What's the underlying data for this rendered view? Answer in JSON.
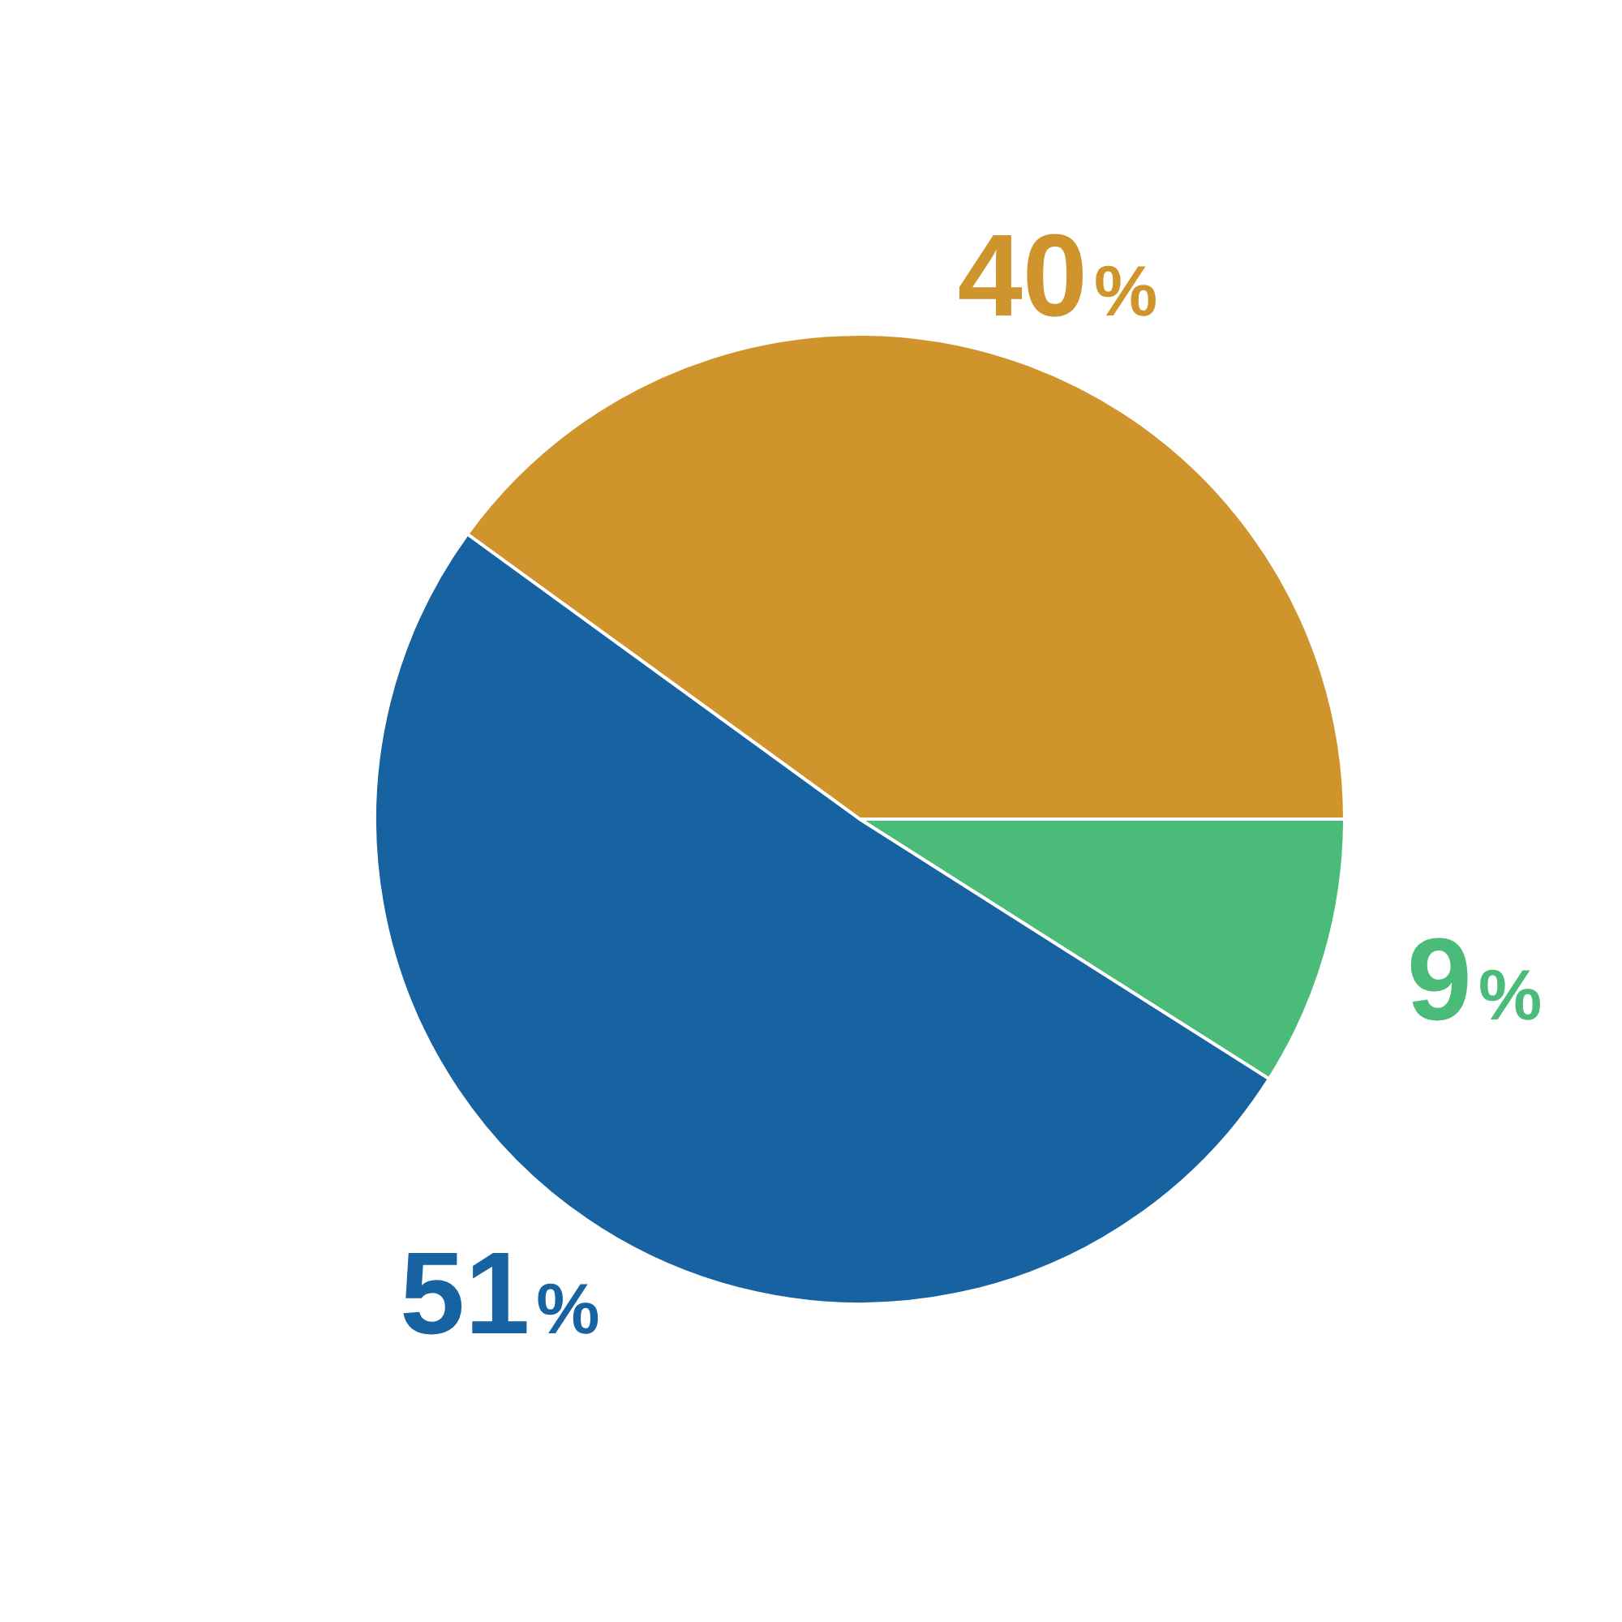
{
  "chart_data": {
    "type": "pie",
    "categories": [
      null,
      null,
      null
    ],
    "values": [
      40,
      9,
      51
    ],
    "colors": [
      "#cf942c",
      "#4abb79",
      "#1762a0"
    ],
    "value_labels": [
      "40%",
      "9%",
      "51%"
    ],
    "legend": false
  }
}
